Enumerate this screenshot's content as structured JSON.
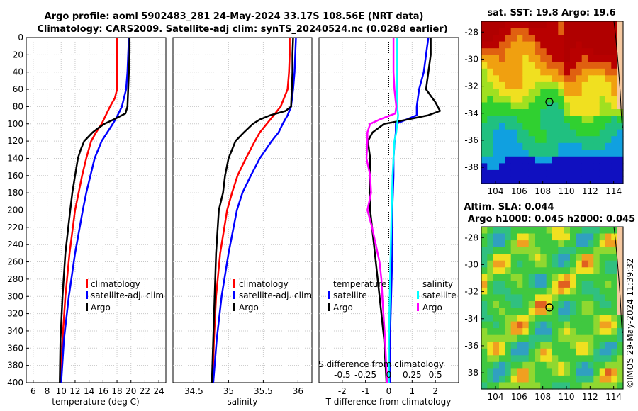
{
  "title": {
    "line1": "Argo profile: aoml 5902483_281 24-May-2024 33.17S 108.56E (NRT data)",
    "line2": "Climatology: CARS2009. Satellite-adj clim: synTS_20240524.nc (0.028d earlier)"
  },
  "map_titles": {
    "sst": "sat. SST: 19.8 Argo: 19.6",
    "sla1": "Altim. SLA: 0.044",
    "sla2": "Argo h1000: 0.045 h2000: 0.045"
  },
  "credit": "©IMOS 29-May-2024 11:39:32",
  "colors": {
    "climatology": "#ff0000",
    "satellite": "#0000ff",
    "argo": "#000000",
    "sal_satellite": "#00ffff",
    "sal_argo": "#ff00ff"
  },
  "chart_data": [
    {
      "type": "line",
      "title": "",
      "xlabel": "temperature (deg C)",
      "ylabel": "",
      "xlim": [
        5,
        25
      ],
      "ylim": [
        400,
        0
      ],
      "xticks": [
        "6",
        "8",
        "10",
        "12",
        "14",
        "16",
        "18",
        "20",
        "22",
        "24"
      ],
      "yticks": [
        "0",
        "20",
        "40",
        "60",
        "80",
        "100",
        "120",
        "140",
        "160",
        "180",
        "200",
        "220",
        "240",
        "260",
        "280",
        "300",
        "320",
        "340",
        "360",
        "380",
        "400"
      ],
      "legend": [
        "climatology",
        "satellite-adj. clim",
        "Argo"
      ],
      "legend_position": "lower-right",
      "series": [
        {
          "name": "climatology",
          "depth": [
            0,
            20,
            40,
            60,
            70,
            80,
            90,
            100,
            110,
            120,
            140,
            160,
            180,
            200,
            250,
            300,
            350,
            400
          ],
          "values": [
            18.0,
            18.0,
            18.0,
            18.0,
            17.7,
            17.0,
            16.4,
            15.8,
            15.0,
            14.3,
            13.6,
            13.0,
            12.5,
            12.0,
            11.2,
            10.6,
            10.2,
            9.9
          ]
        },
        {
          "name": "satellite-adj. clim",
          "depth": [
            0,
            20,
            40,
            60,
            80,
            90,
            100,
            110,
            120,
            140,
            160,
            180,
            200,
            250,
            300,
            350,
            400
          ],
          "values": [
            19.7,
            19.6,
            19.5,
            19.3,
            18.7,
            18.1,
            17.4,
            16.6,
            15.8,
            14.8,
            14.2,
            13.6,
            13.1,
            12.0,
            11.1,
            10.4,
            10.0
          ]
        },
        {
          "name": "Argo",
          "depth": [
            0,
            20,
            40,
            60,
            80,
            88,
            95,
            100,
            105,
            110,
            120,
            130,
            140,
            160,
            180,
            200,
            250,
            300,
            350,
            400
          ],
          "values": [
            19.8,
            19.8,
            19.7,
            19.6,
            19.5,
            19.2,
            17.5,
            16.2,
            15.3,
            14.5,
            13.3,
            12.8,
            12.4,
            12.0,
            11.6,
            11.3,
            10.6,
            10.2,
            9.9,
            9.8
          ]
        }
      ]
    },
    {
      "type": "line",
      "title": "",
      "xlabel": "salinity",
      "ylabel": "",
      "xlim": [
        34.2,
        36.2
      ],
      "ylim": [
        400,
        0
      ],
      "xticks": [
        "34.5",
        "35",
        "35.5",
        "36"
      ],
      "legend": [
        "climatology",
        "satellite-adj. clim",
        "Argo"
      ],
      "legend_position": "lower-right",
      "series": [
        {
          "name": "climatology",
          "depth": [
            0,
            20,
            40,
            60,
            80,
            90,
            100,
            110,
            120,
            140,
            160,
            180,
            200,
            250,
            300,
            350,
            400
          ],
          "values": [
            35.88,
            35.88,
            35.87,
            35.85,
            35.75,
            35.65,
            35.55,
            35.45,
            35.38,
            35.25,
            35.13,
            35.05,
            34.98,
            34.88,
            34.82,
            34.79,
            34.77
          ]
        },
        {
          "name": "satellite-adj. clim",
          "depth": [
            0,
            20,
            40,
            60,
            80,
            90,
            100,
            110,
            120,
            140,
            160,
            180,
            200,
            250,
            300,
            350,
            400
          ],
          "values": [
            35.97,
            35.96,
            35.95,
            35.93,
            35.9,
            35.85,
            35.78,
            35.72,
            35.62,
            35.45,
            35.32,
            35.2,
            35.12,
            35.0,
            34.9,
            34.83,
            34.78
          ]
        },
        {
          "name": "Argo",
          "depth": [
            0,
            20,
            40,
            60,
            80,
            85,
            90,
            95,
            100,
            110,
            120,
            140,
            160,
            180,
            200,
            250,
            300,
            350,
            400
          ],
          "values": [
            35.93,
            35.92,
            35.92,
            35.91,
            35.9,
            35.82,
            35.6,
            35.45,
            35.35,
            35.22,
            35.1,
            35.0,
            34.95,
            34.92,
            34.86,
            34.82,
            34.8,
            34.78,
            34.76
          ]
        }
      ]
    },
    {
      "type": "line",
      "title": "",
      "xlabel": "T difference from climatology",
      "xlabel2": "S difference from climatology",
      "ylabel": "",
      "xlim": [
        -3,
        3
      ],
      "ylim": [
        400,
        0
      ],
      "xticks": [
        "-2",
        "-1",
        "0",
        "1",
        "2"
      ],
      "xticks2": [
        "-0.5",
        "-0.25",
        "0",
        "0.25",
        "0.5"
      ],
      "legend_temperature": {
        "title": "temperature",
        "items": [
          "satellite",
          "Argo"
        ]
      },
      "legend_salinity": {
        "title": "salinity",
        "items": [
          "satellite",
          "Argo"
        ]
      },
      "series": [
        {
          "name": "temperature satellite",
          "depth": [
            0,
            20,
            40,
            60,
            80,
            90,
            100,
            110,
            120,
            140,
            160,
            200,
            250,
            300,
            350,
            400
          ],
          "values": [
            1.7,
            1.6,
            1.5,
            1.3,
            1.2,
            1.2,
            0.3,
            0.3,
            0.25,
            0.2,
            0.2,
            0.15,
            0.15,
            0.1,
            0.05,
            0.05
          ]
        },
        {
          "name": "temperature Argo",
          "depth": [
            0,
            20,
            40,
            60,
            75,
            85,
            90,
            95,
            100,
            110,
            120,
            140,
            200,
            250,
            300,
            350,
            400
          ],
          "values": [
            1.8,
            1.8,
            1.7,
            1.6,
            2.0,
            2.2,
            1.7,
            0.8,
            -0.2,
            -0.7,
            -0.9,
            -0.8,
            -0.8,
            -0.6,
            -0.4,
            -0.2,
            -0.1
          ]
        },
        {
          "name": "salinity satellite",
          "depth": [
            0,
            20,
            40,
            60,
            80,
            90,
            100,
            110,
            120,
            160,
            200,
            250,
            300,
            350,
            400
          ],
          "values": [
            0.09,
            0.09,
            0.09,
            0.09,
            0.09,
            0.1,
            0.09,
            0.08,
            0.06,
            0.04,
            0.03,
            0.02,
            0.01,
            0.0,
            0.0
          ]
        },
        {
          "name": "salinity Argo",
          "depth": [
            0,
            20,
            40,
            60,
            80,
            88,
            95,
            100,
            110,
            120,
            140,
            160,
            180,
            200,
            220,
            240,
            260,
            280,
            300,
            350,
            400
          ],
          "values": [
            0.05,
            0.05,
            0.05,
            0.06,
            0.08,
            0.07,
            -0.1,
            -0.2,
            -0.23,
            -0.23,
            -0.24,
            -0.2,
            -0.19,
            -0.23,
            -0.18,
            -0.14,
            -0.1,
            -0.08,
            -0.07,
            -0.04,
            -0.02
          ]
        }
      ]
    },
    {
      "type": "heatmap",
      "title": "sat. SST: 19.8 Argo: 19.6",
      "xlim": [
        102.8,
        114.8
      ],
      "ylim": [
        -39.2,
        -27.2
      ],
      "xticks": [
        "104",
        "106",
        "108",
        "110",
        "112",
        "114"
      ],
      "yticks": [
        "-28",
        "-30",
        "-32",
        "-34",
        "-36",
        "-38"
      ],
      "argo_position": [
        108.56,
        -33.17
      ]
    },
    {
      "type": "heatmap",
      "title": "Altim. SLA: 0.044",
      "xlim": [
        102.8,
        114.8
      ],
      "ylim": [
        -39.2,
        -27.2
      ],
      "xticks": [
        "104",
        "106",
        "108",
        "110",
        "112",
        "114"
      ],
      "yticks": [
        "-28",
        "-30",
        "-32",
        "-34",
        "-36",
        "-38"
      ],
      "argo_position": [
        108.56,
        -33.17
      ]
    }
  ]
}
